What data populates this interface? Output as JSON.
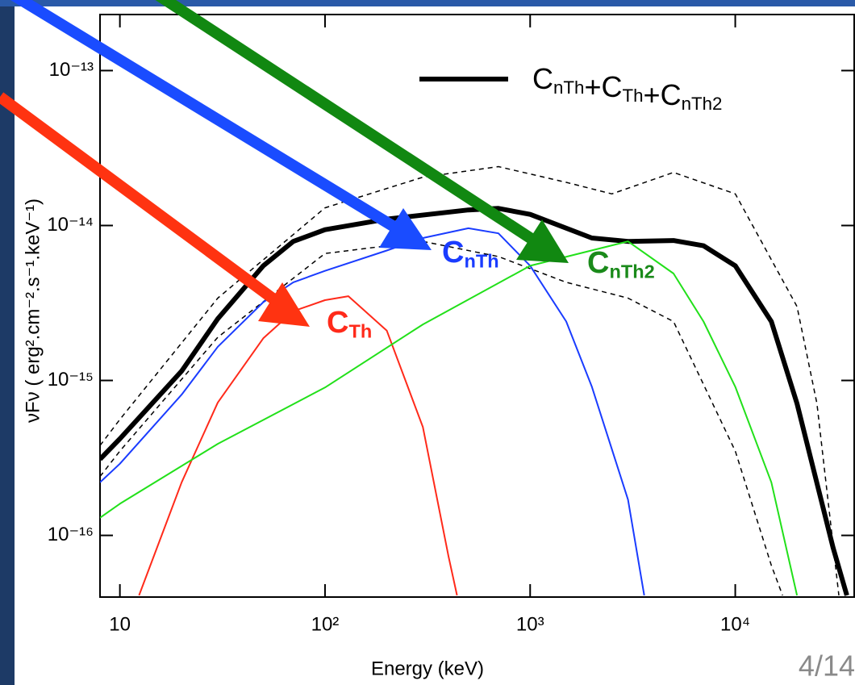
{
  "chart_data": {
    "type": "line",
    "x_label": "Energy (keV)",
    "y_label": "νFν ( erg².cm⁻².s⁻¹.keV⁻¹)",
    "x_log": true,
    "y_log": true,
    "xlim": [
      8,
      38000
    ],
    "ylim": [
      4e-17,
      2.3e-13
    ],
    "xticks": [
      10,
      {
        "value": 100,
        "label": "10²"
      },
      {
        "value": 1000,
        "label": "10³"
      },
      {
        "value": 10000,
        "label": "10⁴"
      }
    ],
    "yticks": [
      {
        "value": 1e-16,
        "label": "10⁻¹⁶"
      },
      {
        "value": 1e-15,
        "label": "10⁻¹⁵"
      },
      {
        "value": 1e-14,
        "label": "10⁻¹⁴"
      },
      {
        "value": 1e-13,
        "label": "10⁻¹³"
      }
    ],
    "series": [
      {
        "name": "CnTh+CTh+CnTh2",
        "color": "#000000",
        "width": 6,
        "dashed": false,
        "x": [
          8,
          10,
          20,
          30,
          50,
          70,
          100,
          200,
          500,
          700,
          1000,
          2000,
          3000,
          5000,
          7000,
          10000,
          15000,
          20000,
          30000,
          35000
        ],
        "values": [
          3.1e-16,
          4.2e-16,
          1.15e-15,
          2.5e-15,
          5.5e-15,
          7.9e-15,
          9.4e-15,
          1.1e-14,
          1.26e-14,
          1.29e-14,
          1.18e-14,
          8.3e-15,
          7.9e-15,
          8e-15,
          7.4e-15,
          5.5e-15,
          2.4e-15,
          7.1e-16,
          8.3e-17,
          4.1e-17
        ]
      },
      {
        "color": "#000000",
        "width": 1.5,
        "dashed": true,
        "x": [
          8,
          10,
          30,
          100,
          300,
          700,
          1500,
          2500,
          5000,
          10000,
          20000,
          25000,
          32000
        ],
        "values": [
          3.8e-16,
          5.6e-16,
          3.4e-15,
          1.3e-14,
          2.05e-14,
          2.4e-14,
          1.9e-14,
          1.6e-14,
          2.2e-14,
          1.6e-14,
          3e-15,
          7.1e-16,
          4.1e-17
        ]
      },
      {
        "color": "#000000",
        "width": 1.5,
        "dashed": true,
        "x": [
          8,
          10,
          30,
          100,
          300,
          700,
          1500,
          3000,
          5000,
          10000,
          15000,
          17000
        ],
        "values": [
          2.4e-16,
          3.5e-16,
          1.9e-15,
          6.6e-15,
          7.9e-15,
          6.3e-15,
          4.3e-15,
          3.4e-15,
          2.4e-15,
          3.5e-16,
          6.4e-17,
          4.1e-17
        ]
      },
      {
        "color": "#ff2a1a",
        "width": 2,
        "dashed": false,
        "x": [
          12.4,
          20,
          30,
          50,
          70,
          100,
          130,
          200,
          300,
          400,
          440
        ],
        "values": [
          4.1e-17,
          2.2e-16,
          7.2e-16,
          1.87e-15,
          2.8e-15,
          3.3e-15,
          3.5e-15,
          2.1e-15,
          5e-16,
          7.3e-17,
          4.1e-17
        ]
      },
      {
        "color": "#1a3cff",
        "width": 2,
        "dashed": false,
        "x": [
          8,
          10,
          20,
          30,
          50,
          70,
          100,
          200,
          300,
          500,
          700,
          1000,
          1500,
          2000,
          3000,
          3600
        ],
        "values": [
          2.2e-16,
          2.9e-16,
          8.1e-16,
          1.65e-15,
          3.2e-15,
          4.3e-15,
          5.1e-15,
          6.9e-15,
          8.3e-15,
          9.6e-15,
          8.9e-15,
          5.5e-15,
          2.4e-15,
          9.1e-16,
          1.7e-16,
          4.1e-17
        ]
      },
      {
        "color": "#22e01a",
        "width": 2,
        "dashed": false,
        "x": [
          8,
          10,
          30,
          100,
          300,
          1000,
          3000,
          5000,
          7000,
          10000,
          15000,
          20000
        ],
        "values": [
          1.3e-16,
          1.6e-16,
          3.9e-16,
          9e-16,
          2.3e-15,
          5.5e-15,
          7.9e-15,
          4.9e-15,
          2.4e-15,
          9.1e-16,
          2.2e-16,
          4.1e-17
        ]
      }
    ],
    "annotations": [
      {
        "text": "CnTh",
        "color": "#1a3cff"
      },
      {
        "text": "CnTh2",
        "color": "#1a8a1a"
      },
      {
        "text": "CTh",
        "color": "#ff2a1a"
      }
    ]
  },
  "footer": {
    "page": "4/14"
  }
}
